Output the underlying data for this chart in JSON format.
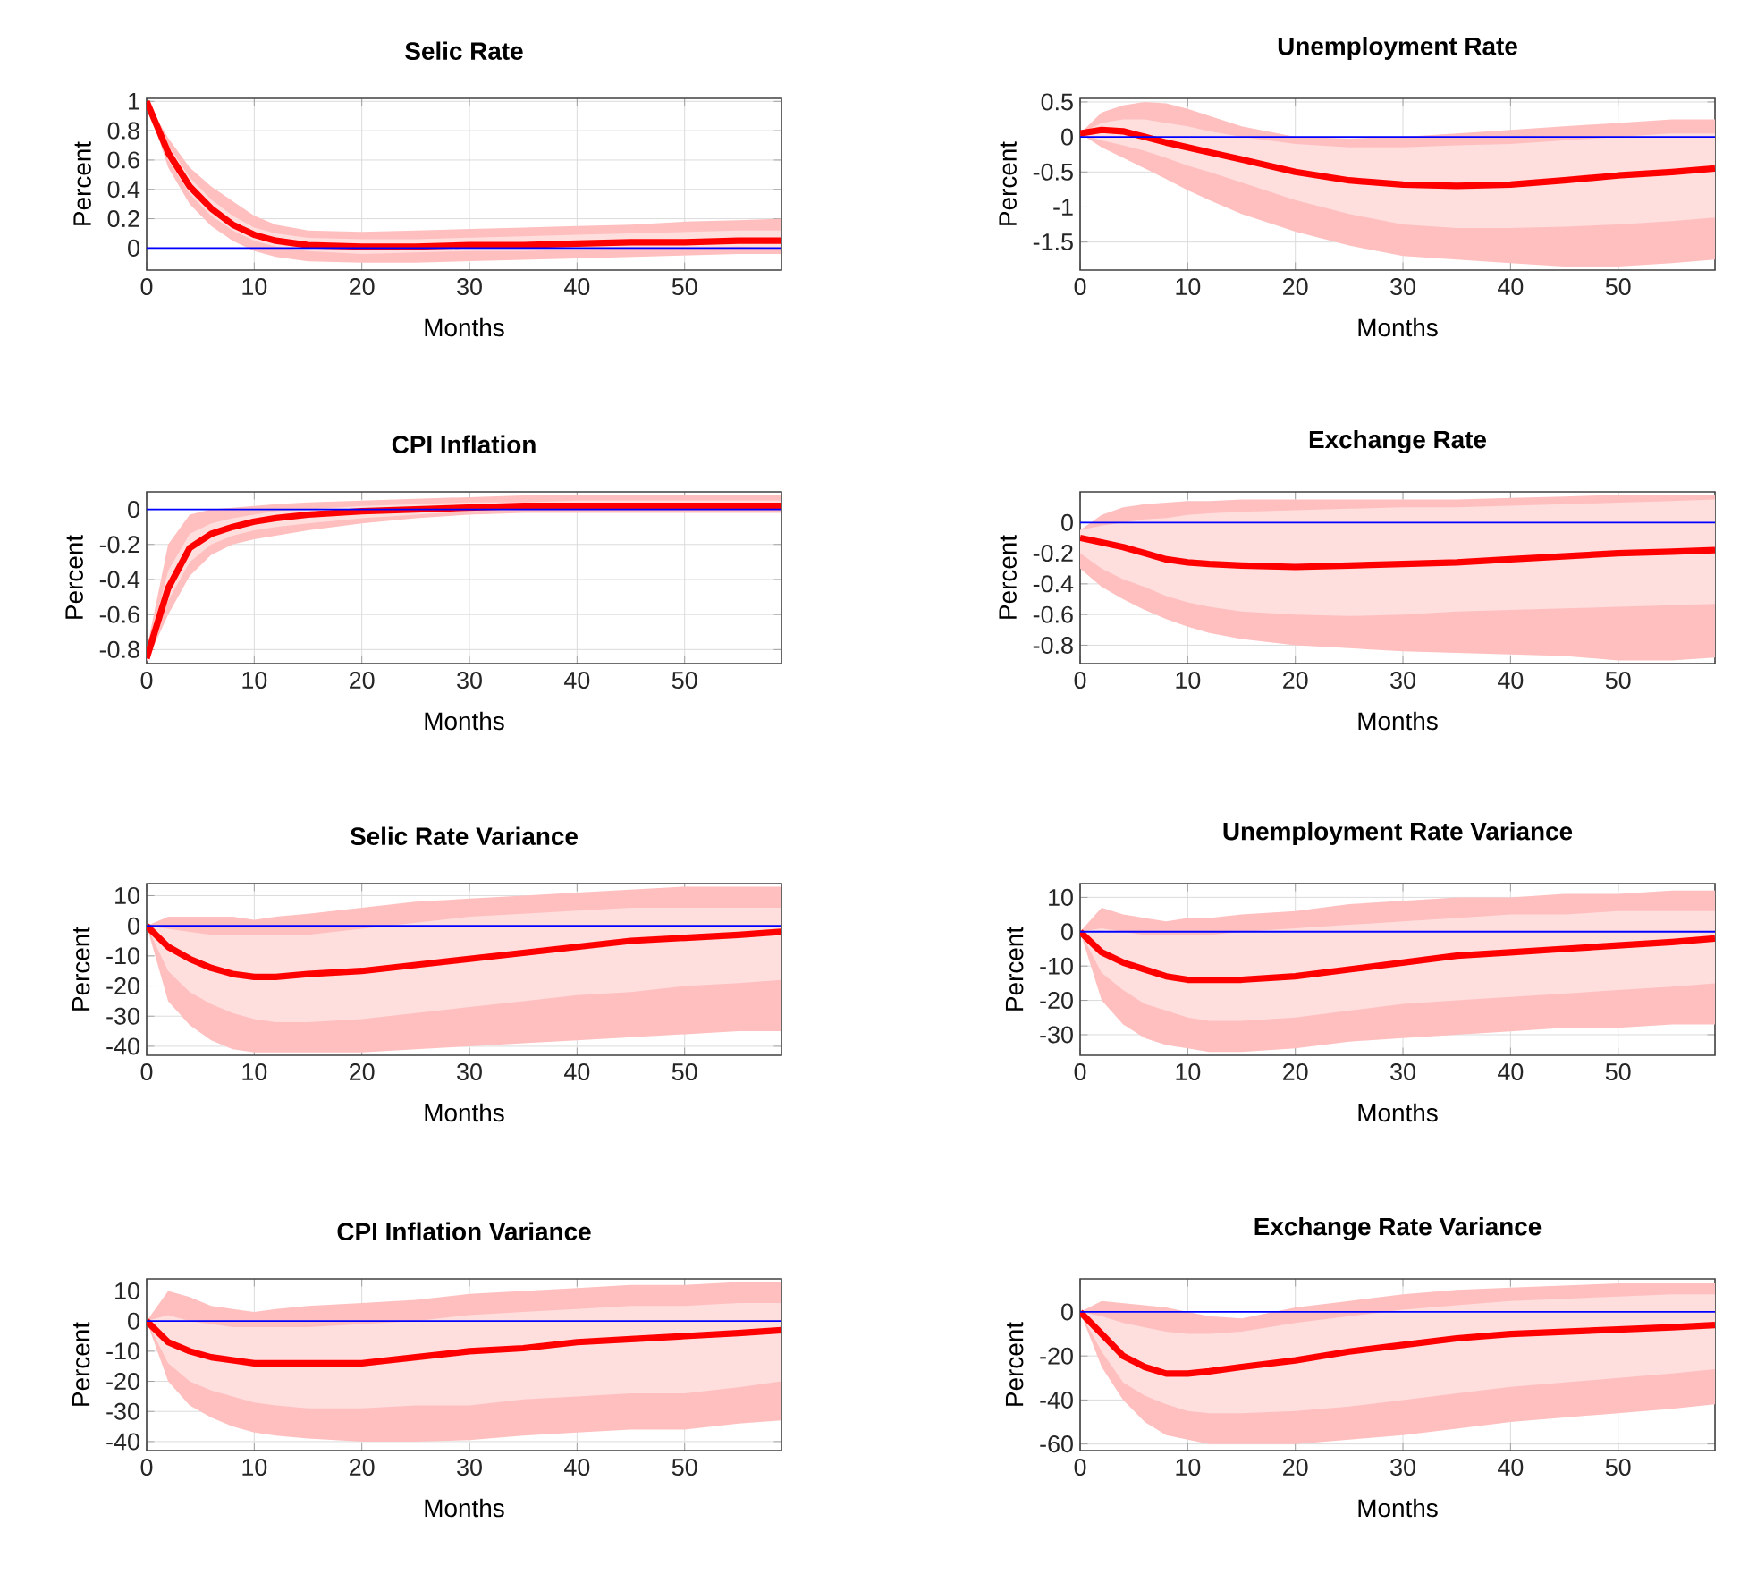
{
  "chart_data": [
    {
      "type": "line",
      "title": "Selic Rate",
      "xlabel": "Months",
      "ylabel": "Percent",
      "grid": true,
      "xlim": [
        0,
        59
      ],
      "xticks": [
        0,
        10,
        20,
        30,
        40,
        50
      ],
      "ylim": [
        -0.15,
        1.02
      ],
      "yticks": [
        0,
        0.2,
        0.4,
        0.6,
        0.8,
        1
      ],
      "x": [
        0,
        2,
        4,
        6,
        8,
        10,
        12,
        15,
        20,
        25,
        30,
        35,
        40,
        45,
        50,
        55,
        59
      ],
      "series": [
        {
          "color": "#ffbfbf",
          "values": [
            null,
            null,
            null,
            null,
            null,
            null,
            null,
            null,
            null,
            null,
            null,
            null,
            null,
            null,
            null,
            null,
            null
          ],
          "lower": [
            1,
            0.55,
            0.3,
            0.15,
            0.05,
            -0.02,
            -0.06,
            -0.09,
            -0.1,
            -0.1,
            -0.09,
            -0.08,
            -0.07,
            -0.06,
            -0.05,
            -0.04,
            -0.04
          ],
          "upper": [
            1,
            0.75,
            0.55,
            0.42,
            0.32,
            0.22,
            0.16,
            0.12,
            0.11,
            0.12,
            0.13,
            0.14,
            0.15,
            0.16,
            0.18,
            0.19,
            0.2
          ]
        },
        {
          "color": "#ffdede",
          "values": [
            null,
            null,
            null,
            null,
            null,
            null,
            null,
            null,
            null,
            null,
            null,
            null,
            null,
            null,
            null,
            null,
            null
          ],
          "lower": [
            1,
            0.6,
            0.37,
            0.22,
            0.12,
            0.05,
            0.01,
            -0.02,
            -0.04,
            -0.03,
            -0.02,
            -0.02,
            -0.01,
            0,
            0,
            0.01,
            0
          ],
          "upper": [
            1,
            0.7,
            0.48,
            0.33,
            0.22,
            0.14,
            0.1,
            0.07,
            0.06,
            0.06,
            0.07,
            0.08,
            0.09,
            0.1,
            0.11,
            0.12,
            0.12
          ]
        },
        {
          "color": "#ff0000",
          "values": [
            1,
            0.65,
            0.42,
            0.27,
            0.16,
            0.09,
            0.05,
            0.02,
            0.01,
            0.01,
            0.02,
            0.02,
            0.03,
            0.04,
            0.04,
            0.05,
            0.05
          ]
        }
      ],
      "ref_lines": [
        {
          "axis": "y",
          "value": 0,
          "color": "#0000ff"
        }
      ]
    },
    {
      "type": "line",
      "title": "Unemployment Rate",
      "xlabel": "Months",
      "ylabel": "Percent",
      "grid": true,
      "xlim": [
        0,
        59
      ],
      "xticks": [
        0,
        10,
        20,
        30,
        40,
        50
      ],
      "ylim": [
        -1.9,
        0.55
      ],
      "yticks": [
        -1.5,
        -1,
        -0.5,
        0,
        0.5
      ],
      "x": [
        0,
        2,
        4,
        6,
        8,
        10,
        12,
        15,
        20,
        25,
        30,
        35,
        40,
        45,
        50,
        55,
        59
      ],
      "series": [
        {
          "color": "#ffbfbf",
          "values": [
            null,
            null,
            null,
            null,
            null,
            null,
            null,
            null,
            null,
            null,
            null,
            null,
            null,
            null,
            null,
            null,
            null
          ],
          "lower": [
            0.05,
            -0.15,
            -0.3,
            -0.45,
            -0.6,
            -0.76,
            -0.9,
            -1.1,
            -1.35,
            -1.55,
            -1.7,
            -1.75,
            -1.8,
            -1.85,
            -1.85,
            -1.8,
            -1.75
          ],
          "upper": [
            0.05,
            0.35,
            0.45,
            0.5,
            0.48,
            0.4,
            0.3,
            0.15,
            0.0,
            -0.02,
            0.0,
            0.05,
            0.1,
            0.15,
            0.2,
            0.25,
            0.25
          ]
        },
        {
          "color": "#ffdede",
          "values": [
            null,
            null,
            null,
            null,
            null,
            null,
            null,
            null,
            null,
            null,
            null,
            null,
            null,
            null,
            null,
            null,
            null
          ],
          "lower": [
            0.05,
            -0.05,
            -0.12,
            -0.2,
            -0.3,
            -0.41,
            -0.5,
            -0.65,
            -0.9,
            -1.1,
            -1.25,
            -1.3,
            -1.3,
            -1.28,
            -1.25,
            -1.2,
            -1.15
          ],
          "upper": [
            0.05,
            0.2,
            0.25,
            0.25,
            0.2,
            0.15,
            0.08,
            0.0,
            -0.1,
            -0.15,
            -0.15,
            -0.12,
            -0.1,
            -0.05,
            0.0,
            0.05,
            0.05
          ]
        },
        {
          "color": "#ff0000",
          "values": [
            0.05,
            0.1,
            0.08,
            0.0,
            -0.08,
            -0.15,
            -0.22,
            -0.32,
            -0.5,
            -0.62,
            -0.68,
            -0.7,
            -0.68,
            -0.62,
            -0.55,
            -0.5,
            -0.45
          ]
        }
      ],
      "ref_lines": [
        {
          "axis": "y",
          "value": 0,
          "color": "#0000ff"
        }
      ]
    },
    {
      "type": "line",
      "title": "CPI Inflation",
      "xlabel": "Months",
      "ylabel": "Percent",
      "grid": true,
      "xlim": [
        0,
        59
      ],
      "xticks": [
        0,
        10,
        20,
        30,
        40,
        50
      ],
      "ylim": [
        -0.88,
        0.1
      ],
      "yticks": [
        -0.8,
        -0.6,
        -0.4,
        -0.2,
        0
      ],
      "x": [
        0,
        2,
        4,
        6,
        8,
        10,
        12,
        15,
        20,
        25,
        30,
        35,
        40,
        45,
        50,
        55,
        59
      ],
      "series": [
        {
          "color": "#ffbfbf",
          "values": [
            null,
            null,
            null,
            null,
            null,
            null,
            null,
            null,
            null,
            null,
            null,
            null,
            null,
            null,
            null,
            null,
            null
          ],
          "lower": [
            -0.87,
            -0.6,
            -0.38,
            -0.26,
            -0.2,
            -0.17,
            -0.15,
            -0.12,
            -0.08,
            -0.05,
            -0.03,
            -0.02,
            -0.02,
            -0.02,
            -0.02,
            -0.02,
            -0.02
          ],
          "upper": [
            -0.8,
            -0.2,
            -0.03,
            0.0,
            0.01,
            0.02,
            0.03,
            0.04,
            0.05,
            0.06,
            0.07,
            0.08,
            0.08,
            0.08,
            0.08,
            0.08,
            0.08
          ]
        },
        {
          "color": "#ffdede",
          "values": [
            null,
            null,
            null,
            null,
            null,
            null,
            null,
            null,
            null,
            null,
            null,
            null,
            null,
            null,
            null,
            null,
            null
          ],
          "lower": [
            -0.86,
            -0.52,
            -0.3,
            -0.2,
            -0.15,
            -0.12,
            -0.1,
            -0.08,
            -0.05,
            -0.03,
            -0.01,
            0,
            0,
            0,
            0,
            0,
            0
          ],
          "upper": [
            -0.83,
            -0.35,
            -0.14,
            -0.08,
            -0.05,
            -0.03,
            -0.01,
            0,
            0.02,
            0.03,
            0.04,
            0.04,
            0.05,
            0.05,
            0.05,
            0.05,
            0.05
          ]
        },
        {
          "color": "#ff0000",
          "values": [
            -0.85,
            -0.45,
            -0.22,
            -0.14,
            -0.1,
            -0.07,
            -0.05,
            -0.03,
            -0.01,
            0,
            0.01,
            0.02,
            0.02,
            0.02,
            0.02,
            0.02,
            0.02
          ]
        }
      ],
      "ref_lines": [
        {
          "axis": "y",
          "value": 0,
          "color": "#0000ff"
        }
      ]
    },
    {
      "type": "line",
      "title": "Exchange Rate",
      "xlabel": "Months",
      "ylabel": "Percent",
      "grid": true,
      "xlim": [
        0,
        59
      ],
      "xticks": [
        0,
        10,
        20,
        30,
        40,
        50
      ],
      "ylim": [
        -0.92,
        0.2
      ],
      "yticks": [
        -0.8,
        -0.6,
        -0.4,
        -0.2,
        0
      ],
      "x": [
        0,
        2,
        4,
        6,
        8,
        10,
        12,
        15,
        20,
        25,
        30,
        35,
        40,
        45,
        50,
        55,
        59
      ],
      "series": [
        {
          "color": "#ffbfbf",
          "values": [
            null,
            null,
            null,
            null,
            null,
            null,
            null,
            null,
            null,
            null,
            null,
            null,
            null,
            null,
            null,
            null,
            null
          ],
          "lower": [
            -0.3,
            -0.42,
            -0.5,
            -0.57,
            -0.63,
            -0.68,
            -0.72,
            -0.76,
            -0.8,
            -0.82,
            -0.84,
            -0.85,
            -0.86,
            -0.87,
            -0.9,
            -0.9,
            -0.88
          ],
          "upper": [
            -0.05,
            0.05,
            0.1,
            0.12,
            0.13,
            0.14,
            0.14,
            0.15,
            0.15,
            0.15,
            0.15,
            0.15,
            0.16,
            0.17,
            0.18,
            0.18,
            0.18
          ]
        },
        {
          "color": "#ffdede",
          "values": [
            null,
            null,
            null,
            null,
            null,
            null,
            null,
            null,
            null,
            null,
            null,
            null,
            null,
            null,
            null,
            null,
            null
          ],
          "lower": [
            -0.2,
            -0.3,
            -0.37,
            -0.42,
            -0.48,
            -0.52,
            -0.55,
            -0.58,
            -0.6,
            -0.61,
            -0.6,
            -0.58,
            -0.57,
            -0.56,
            -0.55,
            -0.54,
            -0.53
          ],
          "upper": [
            -0.05,
            -0.02,
            0.0,
            0.02,
            0.03,
            0.05,
            0.06,
            0.07,
            0.08,
            0.09,
            0.1,
            0.1,
            0.11,
            0.12,
            0.13,
            0.14,
            0.15
          ]
        },
        {
          "color": "#ff0000",
          "values": [
            -0.1,
            -0.13,
            -0.16,
            -0.2,
            -0.24,
            -0.26,
            -0.27,
            -0.28,
            -0.29,
            -0.28,
            -0.27,
            -0.26,
            -0.24,
            -0.22,
            -0.2,
            -0.19,
            -0.18
          ]
        }
      ],
      "ref_lines": [
        {
          "axis": "y",
          "value": 0,
          "color": "#0000ff"
        }
      ]
    },
    {
      "type": "line",
      "title": "Selic Rate Variance",
      "xlabel": "Months",
      "ylabel": "Percent",
      "grid": true,
      "xlim": [
        0,
        59
      ],
      "xticks": [
        0,
        10,
        20,
        30,
        40,
        50
      ],
      "ylim": [
        -43,
        14
      ],
      "yticks": [
        -40,
        -30,
        -20,
        -10,
        0,
        10
      ],
      "x": [
        0,
        2,
        4,
        6,
        8,
        10,
        12,
        15,
        20,
        25,
        30,
        35,
        40,
        45,
        50,
        55,
        59
      ],
      "series": [
        {
          "color": "#ffbfbf",
          "values": [
            null,
            null,
            null,
            null,
            null,
            null,
            null,
            null,
            null,
            null,
            null,
            null,
            null,
            null,
            null,
            null,
            null
          ],
          "lower": [
            0,
            -25,
            -33,
            -38,
            -41,
            -42,
            -42,
            -42,
            -42,
            -41,
            -40,
            -39,
            -38,
            -37,
            -36,
            -35,
            -35
          ],
          "upper": [
            0,
            3,
            3,
            3,
            3,
            2,
            3,
            4,
            6,
            8,
            9,
            10,
            11,
            12,
            13,
            13,
            13
          ]
        },
        {
          "color": "#ffdede",
          "values": [
            null,
            null,
            null,
            null,
            null,
            null,
            null,
            null,
            null,
            null,
            null,
            null,
            null,
            null,
            null,
            null,
            null
          ],
          "lower": [
            0,
            -15,
            -22,
            -26,
            -29,
            -31,
            -32,
            -32,
            -31,
            -29,
            -27,
            -25,
            -23,
            -22,
            -20,
            -19,
            -18
          ],
          "upper": [
            0,
            -1,
            -2,
            -3,
            -3,
            -3,
            -3,
            -3,
            -1,
            1,
            3,
            4,
            5,
            6,
            6,
            6,
            6
          ]
        },
        {
          "color": "#ff0000",
          "values": [
            0,
            -7,
            -11,
            -14,
            -16,
            -17,
            -17,
            -16,
            -15,
            -13,
            -11,
            -9,
            -7,
            -5,
            -4,
            -3,
            -2
          ]
        }
      ],
      "ref_lines": [
        {
          "axis": "y",
          "value": 0,
          "color": "#0000ff"
        }
      ]
    },
    {
      "type": "line",
      "title": "Unemployment Rate Variance",
      "xlabel": "Months",
      "ylabel": "Percent",
      "grid": true,
      "xlim": [
        0,
        59
      ],
      "xticks": [
        0,
        10,
        20,
        30,
        40,
        50
      ],
      "ylim": [
        -36,
        14
      ],
      "yticks": [
        -30,
        -20,
        -10,
        0,
        10
      ],
      "x": [
        0,
        2,
        4,
        6,
        8,
        10,
        12,
        15,
        20,
        25,
        30,
        35,
        40,
        45,
        50,
        55,
        59
      ],
      "series": [
        {
          "color": "#ffbfbf",
          "values": [
            null,
            null,
            null,
            null,
            null,
            null,
            null,
            null,
            null,
            null,
            null,
            null,
            null,
            null,
            null,
            null,
            null
          ],
          "lower": [
            0,
            -20,
            -27,
            -31,
            -33,
            -34,
            -35,
            -35,
            -34,
            -32,
            -31,
            -30,
            -29,
            -28,
            -28,
            -27,
            -27
          ],
          "upper": [
            0,
            7,
            5,
            4,
            3,
            4,
            4,
            5,
            6,
            8,
            9,
            10,
            10,
            11,
            11,
            12,
            12
          ]
        },
        {
          "color": "#ffdede",
          "values": [
            null,
            null,
            null,
            null,
            null,
            null,
            null,
            null,
            null,
            null,
            null,
            null,
            null,
            null,
            null,
            null,
            null
          ],
          "lower": [
            0,
            -12,
            -17,
            -21,
            -23,
            -25,
            -26,
            -26,
            -25,
            -23,
            -21,
            -20,
            -19,
            -18,
            -17,
            -16,
            -15
          ],
          "upper": [
            0,
            1,
            0,
            -1,
            -1,
            -1,
            -1,
            0,
            1,
            2,
            3,
            4,
            5,
            5,
            6,
            6,
            6
          ]
        },
        {
          "color": "#ff0000",
          "values": [
            0,
            -6,
            -9,
            -11,
            -13,
            -14,
            -14,
            -14,
            -13,
            -11,
            -9,
            -7,
            -6,
            -5,
            -4,
            -3,
            -2
          ]
        }
      ],
      "ref_lines": [
        {
          "axis": "y",
          "value": 0,
          "color": "#0000ff"
        }
      ]
    },
    {
      "type": "line",
      "title": "CPI Inflation Variance",
      "xlabel": "Months",
      "ylabel": "Percent",
      "grid": true,
      "xlim": [
        0,
        59
      ],
      "xticks": [
        0,
        10,
        20,
        30,
        40,
        50
      ],
      "ylim": [
        -43,
        14
      ],
      "yticks": [
        -40,
        -30,
        -20,
        -10,
        0,
        10
      ],
      "x": [
        0,
        2,
        4,
        6,
        8,
        10,
        12,
        15,
        20,
        25,
        30,
        35,
        40,
        45,
        50,
        55,
        59
      ],
      "series": [
        {
          "color": "#ffbfbf",
          "values": [
            null,
            null,
            null,
            null,
            null,
            null,
            null,
            null,
            null,
            null,
            null,
            null,
            null,
            null,
            null,
            null,
            null
          ],
          "lower": [
            0,
            -20,
            -28,
            -32,
            -35,
            -37,
            -38,
            -39,
            -40,
            -40,
            -39.5,
            -38,
            -37,
            -36,
            -36,
            -34,
            -33
          ],
          "upper": [
            0,
            10,
            8,
            5,
            4,
            3,
            4,
            5,
            6,
            7,
            9,
            10,
            11,
            12,
            12,
            13,
            13
          ]
        },
        {
          "color": "#ffdede",
          "values": [
            null,
            null,
            null,
            null,
            null,
            null,
            null,
            null,
            null,
            null,
            null,
            null,
            null,
            null,
            null,
            null,
            null
          ],
          "lower": [
            0,
            -14,
            -20,
            -23,
            -25,
            -27,
            -28,
            -29,
            -29,
            -28,
            -28,
            -26,
            -25,
            -24,
            -24,
            -22,
            -20
          ],
          "upper": [
            0,
            2,
            0,
            -1,
            -2,
            -2,
            -2,
            -2,
            -1,
            0,
            2,
            3,
            4,
            5,
            5,
            6,
            6
          ]
        },
        {
          "color": "#ff0000",
          "values": [
            0,
            -7,
            -10,
            -12,
            -13,
            -14,
            -14,
            -14,
            -14,
            -12,
            -10,
            -9,
            -7,
            -6,
            -5,
            -4,
            -3
          ]
        }
      ],
      "ref_lines": [
        {
          "axis": "y",
          "value": 0,
          "color": "#0000ff"
        }
      ]
    },
    {
      "type": "line",
      "title": "Exchange Rate Variance",
      "xlabel": "Months",
      "ylabel": "Percent",
      "grid": true,
      "xlim": [
        0,
        59
      ],
      "xticks": [
        0,
        10,
        20,
        30,
        40,
        50
      ],
      "ylim": [
        -63,
        15
      ],
      "yticks": [
        -60,
        -40,
        -20,
        0
      ],
      "x": [
        0,
        2,
        4,
        6,
        8,
        10,
        12,
        15,
        20,
        25,
        30,
        35,
        40,
        45,
        50,
        55,
        59
      ],
      "series": [
        {
          "color": "#ffbfbf",
          "values": [
            null,
            null,
            null,
            null,
            null,
            null,
            null,
            null,
            null,
            null,
            null,
            null,
            null,
            null,
            null,
            null,
            null
          ],
          "lower": [
            0,
            -25,
            -40,
            -50,
            -56,
            -58,
            -60,
            -60,
            -60,
            -58,
            -56,
            -53,
            -50,
            -48,
            -46,
            -44,
            -42
          ],
          "upper": [
            0,
            5,
            4,
            3,
            2,
            0,
            -2,
            -3,
            2,
            5,
            8,
            10,
            11,
            12,
            13,
            13,
            13
          ]
        },
        {
          "color": "#ffdede",
          "values": [
            null,
            null,
            null,
            null,
            null,
            null,
            null,
            null,
            null,
            null,
            null,
            null,
            null,
            null,
            null,
            null,
            null
          ],
          "lower": [
            0,
            -18,
            -32,
            -38,
            -42,
            -45,
            -46,
            -46,
            -45,
            -43,
            -40,
            -37,
            -34,
            -32,
            -30,
            -28,
            -26
          ],
          "upper": [
            0,
            -2,
            -5,
            -7,
            -9,
            -10,
            -10,
            -9,
            -5,
            -2,
            1,
            3,
            5,
            6,
            7,
            8,
            8
          ]
        },
        {
          "color": "#ff0000",
          "values": [
            0,
            -10,
            -20,
            -25,
            -28,
            -28,
            -27,
            -25,
            -22,
            -18,
            -15,
            -12,
            -10,
            -9,
            -8,
            -7,
            -6
          ]
        }
      ],
      "ref_lines": [
        {
          "axis": "y",
          "value": 0,
          "color": "#0000ff"
        }
      ]
    }
  ]
}
